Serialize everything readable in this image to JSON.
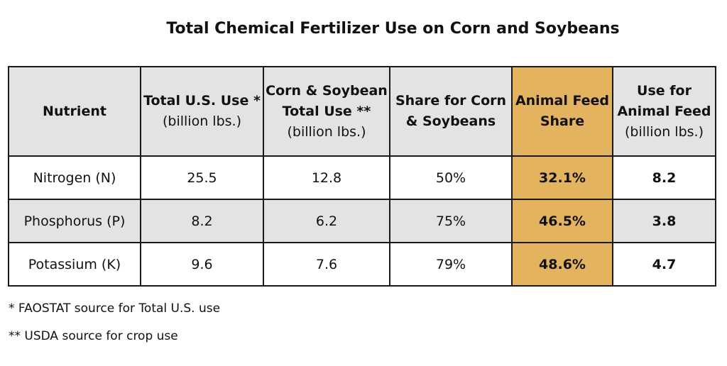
{
  "title": "Total Chemical Fertilizer Use on Corn and Soybeans",
  "headers": {
    "nutrient": "Nutrient",
    "total_us_use_line1": "Total U.S. Use *",
    "total_us_use_line2": "(billion lbs.)",
    "corn_soy_use_line1": "Corn & Soybean",
    "corn_soy_use_line2": "Total Use **",
    "corn_soy_use_line3": "(billion lbs.)",
    "share_line1": "Share for Corn",
    "share_line2": "& Soybeans",
    "animal_share_line1": "Animal Feed",
    "animal_share_line2": "Share",
    "animal_use_line1": "Use for",
    "animal_use_line2": "Animal Feed",
    "animal_use_line3": "(billion lbs.)"
  },
  "rows": [
    {
      "nutrient": "Nitrogen (N)",
      "total_us_use": "25.5",
      "corn_soy_use": "12.8",
      "share": "50%",
      "animal_share": "32.1%",
      "animal_use": "8.2"
    },
    {
      "nutrient": "Phosphorus (P)",
      "total_us_use": "8.2",
      "corn_soy_use": "6.2",
      "share": "75%",
      "animal_share": "46.5%",
      "animal_use": "3.8"
    },
    {
      "nutrient": "Potassium (K)",
      "total_us_use": "9.6",
      "corn_soy_use": "7.6",
      "share": "79%",
      "animal_share": "48.6%",
      "animal_use": "4.7"
    }
  ],
  "footnotes": [
    "* FAOSTAT source for Total U.S. use",
    "** USDA source for crop use"
  ],
  "colors": {
    "highlight": "#e4b35f",
    "shaded": "#e3e3e3",
    "border": "#1a1a1a"
  }
}
